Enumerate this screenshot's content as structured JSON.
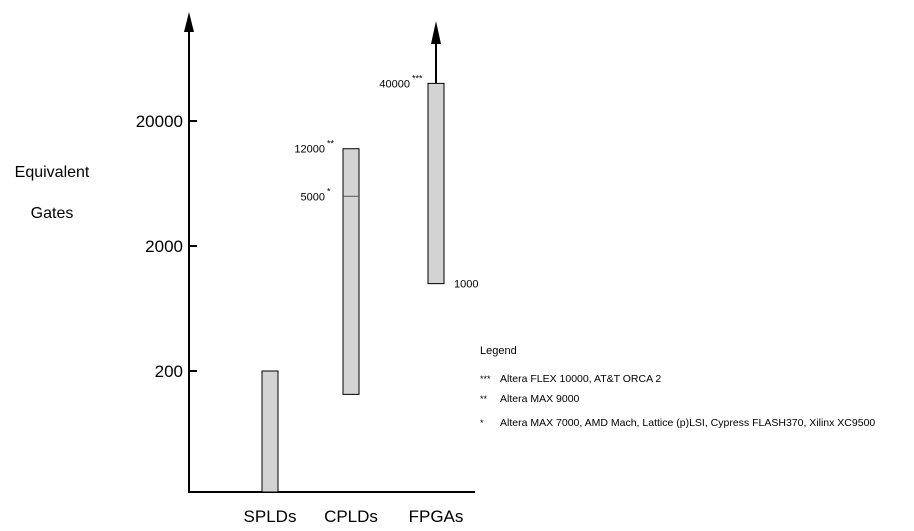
{
  "chart_data": {
    "type": "bar",
    "ylabel_lines": [
      "Equivalent",
      "Gates"
    ],
    "y_scale": "log",
    "y_ticks": [
      200,
      2000,
      20000
    ],
    "y_tick_labels": [
      "200",
      "2000",
      "20000"
    ],
    "categories": [
      "SPLDs",
      "CPLDs",
      "FPGAs"
    ],
    "ranges": [
      {
        "category": "SPLDs",
        "low": 20,
        "high": 200
      },
      {
        "category": "CPLDs",
        "low": 130,
        "high": 12000,
        "mid": 5000
      },
      {
        "category": "FPGAs",
        "low": 1000,
        "high": 40000,
        "arrow": true
      }
    ],
    "annotations": [
      {
        "category": "CPLDs",
        "value": 12000,
        "text": "12000",
        "marker": "**"
      },
      {
        "category": "CPLDs",
        "value": 5000,
        "text": "5000",
        "marker": "*"
      },
      {
        "category": "FPGAs",
        "value": 40000,
        "text": "40000",
        "marker": "***"
      },
      {
        "category": "FPGAs",
        "value": 1000,
        "text": "1000",
        "marker": ""
      }
    ],
    "legend": {
      "title": "Legend",
      "entries": [
        {
          "marker": "***",
          "text": "Altera FLEX 10000, AT&T ORCA 2"
        },
        {
          "marker": "**",
          "text": "Altera MAX 9000"
        },
        {
          "marker": "*",
          "text": "Altera MAX 7000, AMD Mach, Lattice (p)LSI, Cypress FLASH370, Xilinx XC9500"
        }
      ]
    },
    "colors": {
      "bar_fill": "#d3d3d3",
      "axis": "#000000"
    },
    "grid": false
  }
}
